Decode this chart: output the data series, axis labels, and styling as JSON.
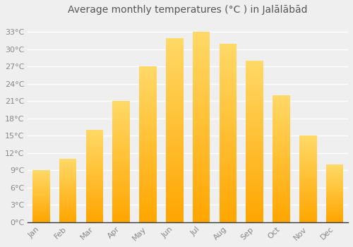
{
  "title": "Average monthly temperatures (°C ) in Jalālābād",
  "months": [
    "Jan",
    "Feb",
    "Mar",
    "Apr",
    "May",
    "Jun",
    "Jul",
    "Aug",
    "Sep",
    "Oct",
    "Nov",
    "Dec"
  ],
  "values": [
    9,
    11,
    16,
    21,
    27,
    32,
    33,
    31,
    28,
    22,
    15,
    10
  ],
  "bar_color_bottom": "#FFA500",
  "bar_color_top": "#FFD966",
  "background_color": "#EFEFEF",
  "grid_color": "#FFFFFF",
  "axis_line_color": "#333333",
  "yticks": [
    0,
    3,
    6,
    9,
    12,
    15,
    18,
    21,
    24,
    27,
    30,
    33
  ],
  "ylim": [
    0,
    35
  ],
  "title_fontsize": 10,
  "tick_fontsize": 8,
  "tick_color": "#888888",
  "title_color": "#555555"
}
